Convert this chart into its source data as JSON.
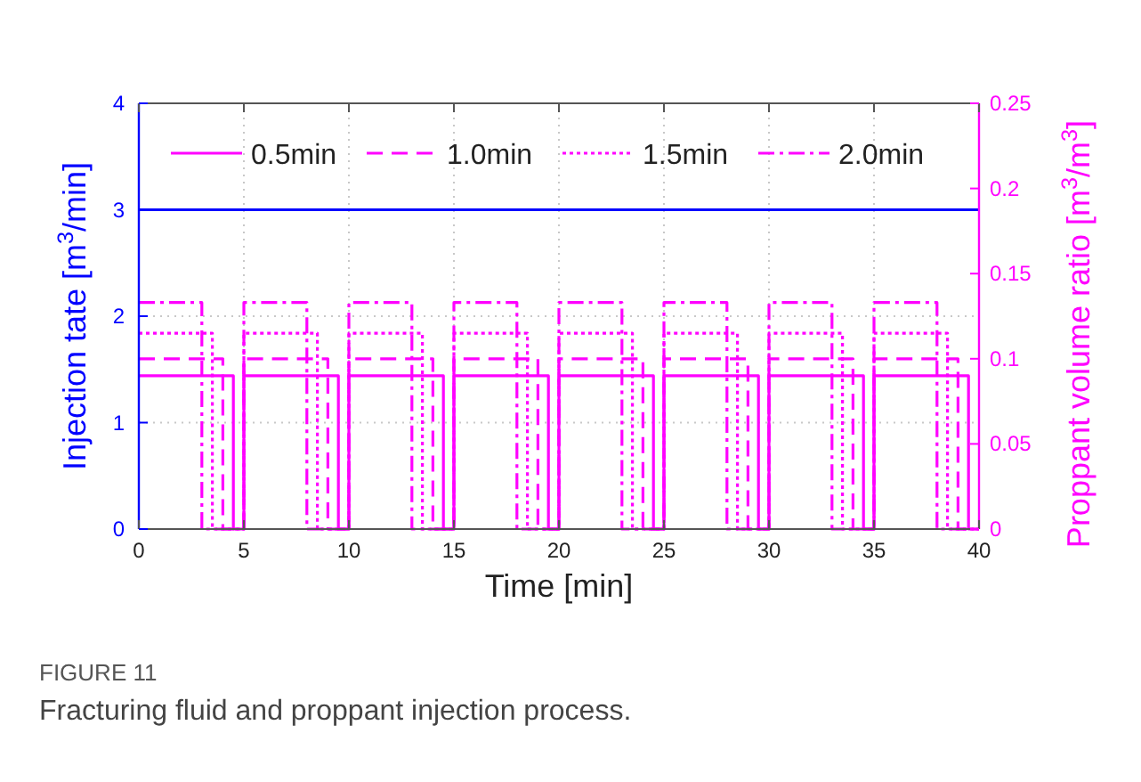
{
  "chart_data": {
    "type": "step",
    "xlabel": "Time [min]",
    "ylabel": "Injection tate [m$^{3}$/min]",
    "y2label": "Proppant volume ratio [m$^{3}$/m$^{3}$]",
    "xlim": [
      0,
      40
    ],
    "xticks": [
      0,
      5,
      10,
      15,
      20,
      25,
      30,
      35,
      40
    ],
    "ylim": [
      0,
      4
    ],
    "yticks": [
      0,
      1,
      2,
      3,
      4
    ],
    "y2lim": [
      0,
      0.25
    ],
    "y2ticks": [
      0,
      0.05,
      0.1,
      0.15,
      0.2,
      0.25
    ],
    "grid": true,
    "legend": "top",
    "annotations": [
      "FIGURE 11",
      "Fracturing fluid and proppant injection process."
    ],
    "series": [
      {
        "type": "line",
        "color": "#0000ff",
        "x": [
          0,
          40
        ],
        "values": [
          3,
          3
        ],
        "line_style": "solid"
      },
      {
        "name": "0.5min",
        "color": "#ff00ff",
        "axis": "y2",
        "line_style": "solid",
        "x": [
          0,
          4.5,
          5,
          9.5,
          10,
          14.5,
          15,
          19.5,
          20,
          24.5,
          25,
          29.5,
          30,
          34.5,
          35,
          39.5,
          40
        ],
        "values": [
          0.09,
          0,
          0.09,
          0,
          0.09,
          0,
          0.09,
          0,
          0.09,
          0,
          0.09,
          0,
          0.09,
          0,
          0.09,
          0,
          0
        ]
      },
      {
        "name": "1.0min",
        "color": "#ff00ff",
        "axis": "y2",
        "line_style": "dashed",
        "x": [
          0,
          4,
          5,
          9,
          10,
          14,
          15,
          19,
          20,
          24,
          25,
          29,
          30,
          34,
          35,
          39,
          40
        ],
        "values": [
          0.1,
          0,
          0.1,
          0,
          0.1,
          0,
          0.1,
          0,
          0.1,
          0,
          0.1,
          0,
          0.1,
          0,
          0.1,
          0,
          0
        ]
      },
      {
        "name": "1.5min",
        "color": "#ff00ff",
        "axis": "y2",
        "line_style": "dotted",
        "x": [
          0,
          3.5,
          5,
          8.5,
          10,
          13.5,
          15,
          18.5,
          20,
          23.5,
          25,
          28.5,
          30,
          33.5,
          35,
          38.5,
          40
        ],
        "values": [
          0.115,
          0,
          0.115,
          0,
          0.115,
          0,
          0.115,
          0,
          0.115,
          0,
          0.115,
          0,
          0.115,
          0,
          0.115,
          0,
          0
        ]
      },
      {
        "name": "2.0min",
        "color": "#ff00ff",
        "axis": "y2",
        "line_style": "dashdot",
        "x": [
          0,
          3,
          5,
          8,
          10,
          13,
          15,
          18,
          20,
          23,
          25,
          28,
          30,
          33,
          35,
          38,
          40
        ],
        "values": [
          0.133,
          0,
          0.133,
          0,
          0.133,
          0,
          0.133,
          0,
          0.133,
          0,
          0.133,
          0,
          0.133,
          0,
          0.133,
          0,
          0
        ]
      }
    ]
  }
}
